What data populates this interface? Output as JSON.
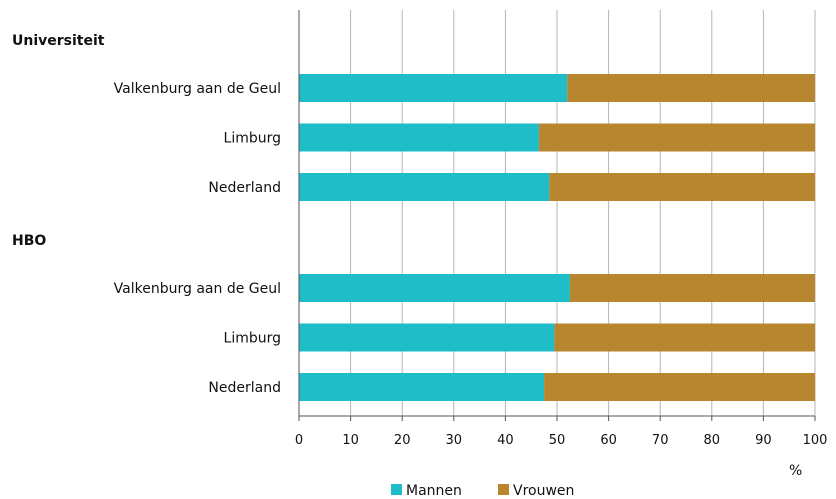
{
  "chart_data": {
    "type": "bar",
    "orientation": "horizontal",
    "stacked": true,
    "groups": [
      {
        "label": "Universiteit",
        "rows": [
          {
            "label": "Valkenburg aan de Geul",
            "values": [
              52,
              48
            ]
          },
          {
            "label": "Limburg",
            "values": [
              46.5,
              53.5
            ]
          },
          {
            "label": "Nederland",
            "values": [
              48.5,
              51.5
            ]
          }
        ]
      },
      {
        "label": "HBO",
        "rows": [
          {
            "label": "Valkenburg aan de Geul",
            "values": [
              52.5,
              47.5
            ]
          },
          {
            "label": "Limburg",
            "values": [
              49.5,
              50.5
            ]
          },
          {
            "label": "Nederland",
            "values": [
              47.5,
              52.5
            ]
          }
        ]
      }
    ],
    "series": [
      {
        "name": "Mannen",
        "color": "#1ebdc8"
      },
      {
        "name": "Vrouwen",
        "color": "#b8862e"
      }
    ],
    "xlim": [
      0,
      100
    ],
    "xticks": [
      "0",
      "10",
      "20",
      "30",
      "40",
      "50",
      "60",
      "70",
      "80",
      "90",
      "100"
    ],
    "xunit": "%",
    "grid": true,
    "legend_position": "bottom"
  }
}
